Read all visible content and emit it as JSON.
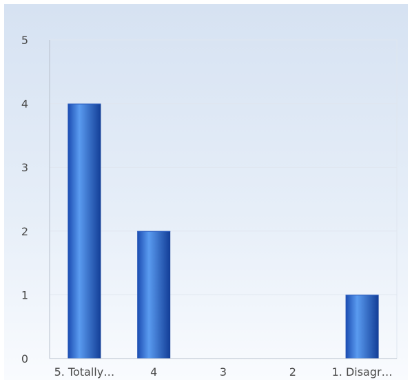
{
  "chart_data": {
    "type": "bar",
    "title": "",
    "xlabel": "",
    "ylabel": "",
    "categories": [
      "5. Totally…",
      "4",
      "3",
      "2",
      "1. Disagr…"
    ],
    "values": [
      4,
      2,
      0,
      0,
      1
    ],
    "ylim": [
      0,
      5
    ],
    "yticks": [
      0,
      1,
      2,
      3,
      4,
      5
    ],
    "grid": true,
    "legend": "none",
    "colors": {
      "bar_dark": "#1a4bb0",
      "bar_light": "#5a9bf0",
      "grid": "#dfe6ef",
      "axis": "#b8c0cc",
      "plot_border": "#dfe6ef",
      "label": "#4a4a4a"
    }
  }
}
